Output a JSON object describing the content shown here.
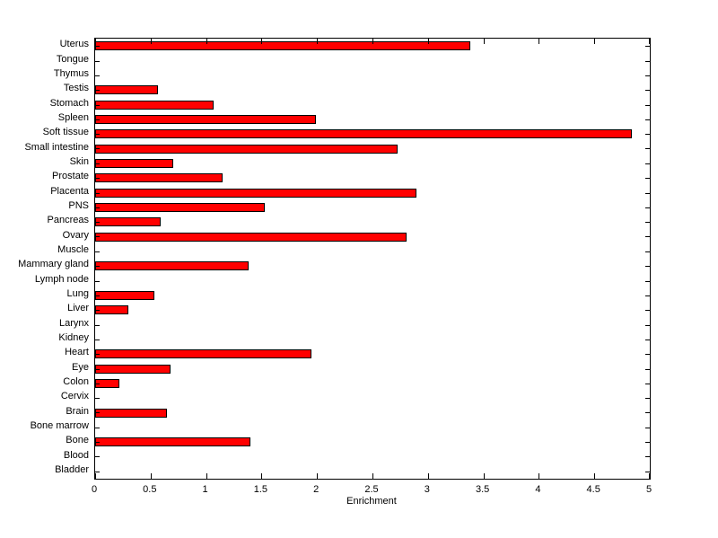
{
  "chart_data": {
    "type": "bar",
    "orientation": "horizontal",
    "title": "",
    "xlabel": "Enrichment",
    "ylabel": "",
    "xlim": [
      0,
      5
    ],
    "xticks": [
      0,
      0.5,
      1,
      1.5,
      2,
      2.5,
      3,
      3.5,
      4,
      4.5,
      5
    ],
    "xtick_labels": [
      "0",
      "0.5",
      "1",
      "1.5",
      "2",
      "2.5",
      "3",
      "3.5",
      "4",
      "4.5",
      "5"
    ],
    "grid": false,
    "legend": null,
    "bar_color": "#FF0000",
    "bar_edge_color": "#000000",
    "categories": [
      "Uterus",
      "Tongue",
      "Thymus",
      "Testis",
      "Stomach",
      "Spleen",
      "Soft tissue",
      "Small intestine",
      "Skin",
      "Prostate",
      "Placenta",
      "PNS",
      "Pancreas",
      "Ovary",
      "Muscle",
      "Mammary gland",
      "Lymph node",
      "Lung",
      "Liver",
      "Larynx",
      "Kidney",
      "Heart",
      "Eye",
      "Colon",
      "Cervix",
      "Brain",
      "Bone marrow",
      "Bone",
      "Blood",
      "Bladder"
    ],
    "values": [
      3.38,
      0,
      0,
      0.57,
      1.07,
      1.99,
      4.84,
      2.73,
      0.7,
      1.15,
      2.9,
      1.53,
      0.59,
      2.81,
      0,
      1.38,
      0,
      0.53,
      0.3,
      0,
      0,
      1.95,
      0.68,
      0.22,
      0,
      0.65,
      0,
      1.4,
      0,
      0
    ]
  }
}
